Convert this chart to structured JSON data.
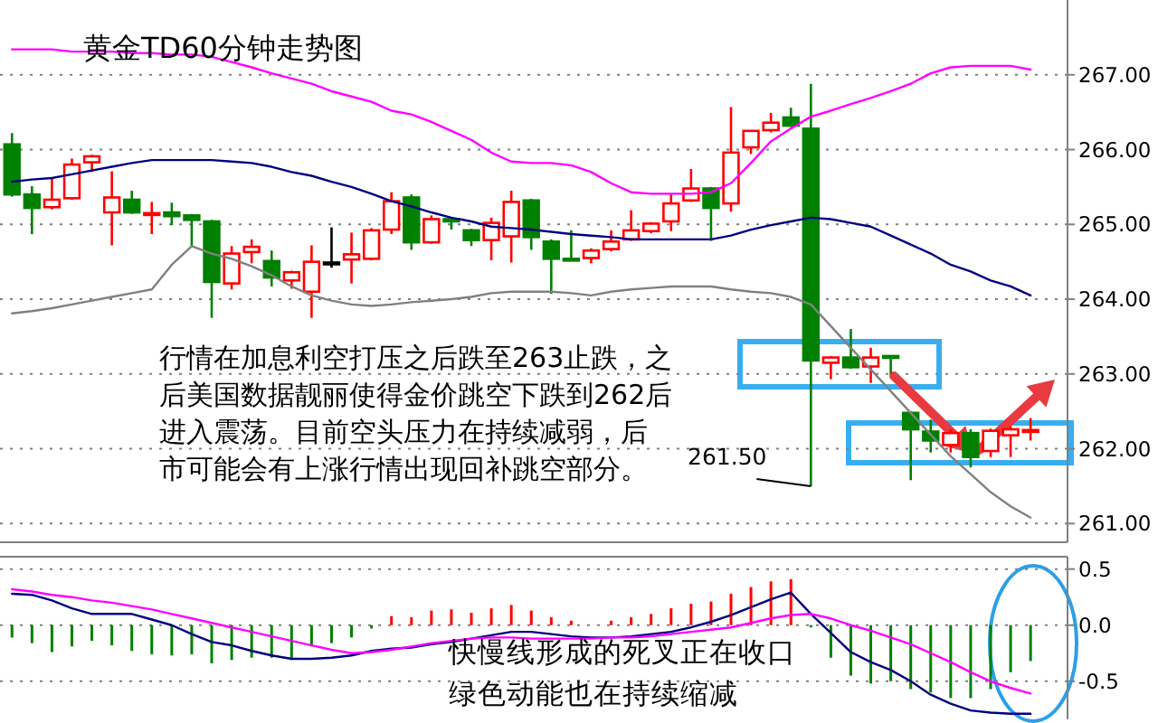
{
  "chart_data": [
    {
      "type": "candlestick",
      "title": "黄金TD60分钟走势图",
      "categories": [
        null,
        null,
        null,
        null,
        null,
        null,
        null,
        null,
        null,
        null,
        null,
        null,
        null,
        null,
        null,
        null,
        null,
        null,
        null,
        null,
        null,
        null,
        null,
        null,
        null,
        null,
        null,
        null,
        null,
        null,
        null,
        null,
        null,
        null,
        null,
        null,
        null,
        null,
        null,
        null,
        null,
        null,
        null,
        null,
        null,
        null,
        null,
        null,
        null,
        null,
        null,
        null
      ],
      "ohlc": [
        [
          266.07,
          266.22,
          265.37,
          265.4
        ],
        [
          265.4,
          265.51,
          264.87,
          265.22
        ],
        [
          265.23,
          265.61,
          265.2,
          265.33
        ],
        [
          265.35,
          265.88,
          265.33,
          265.8
        ],
        [
          265.83,
          265.93,
          265.7,
          265.91
        ],
        [
          265.16,
          265.71,
          264.72,
          265.36
        ],
        [
          265.33,
          265.45,
          265.14,
          265.16
        ],
        [
          265.13,
          265.3,
          264.87,
          265.15
        ],
        [
          265.16,
          265.29,
          264.99,
          265.11
        ],
        [
          265.12,
          265.14,
          264.71,
          265.06
        ],
        [
          265.04,
          265.06,
          263.75,
          264.23
        ],
        [
          264.21,
          264.71,
          264.13,
          264.61
        ],
        [
          264.63,
          264.8,
          264.48,
          264.7
        ],
        [
          264.51,
          264.65,
          264.17,
          264.29
        ],
        [
          264.25,
          264.38,
          264.14,
          264.36
        ],
        [
          264.1,
          264.72,
          263.75,
          264.5
        ],
        [
          264.49,
          264.96,
          264.42,
          264.49
        ],
        [
          264.53,
          264.89,
          264.21,
          264.6
        ],
        [
          264.54,
          264.95,
          264.52,
          264.92
        ],
        [
          264.93,
          265.43,
          264.87,
          265.31
        ],
        [
          265.36,
          265.4,
          264.66,
          264.76
        ],
        [
          264.76,
          265.12,
          264.74,
          265.07
        ],
        [
          265.07,
          265.09,
          264.93,
          265.04
        ],
        [
          264.92,
          264.94,
          264.71,
          264.79
        ],
        [
          264.79,
          265.09,
          264.52,
          265.02
        ],
        [
          264.84,
          265.45,
          264.49,
          265.3
        ],
        [
          265.32,
          265.34,
          264.66,
          264.83
        ],
        [
          264.77,
          264.8,
          264.07,
          264.54
        ],
        [
          264.54,
          264.92,
          264.52,
          264.53
        ],
        [
          264.55,
          264.68,
          264.48,
          264.65
        ],
        [
          264.67,
          264.92,
          264.64,
          264.77
        ],
        [
          264.8,
          265.19,
          264.78,
          264.92
        ],
        [
          264.91,
          265.03,
          264.88,
          265.01
        ],
        [
          265.04,
          265.4,
          264.91,
          265.28
        ],
        [
          265.32,
          265.74,
          265.3,
          265.48
        ],
        [
          265.48,
          265.5,
          264.78,
          265.22
        ],
        [
          265.28,
          266.57,
          265.17,
          265.96
        ],
        [
          266.03,
          266.26,
          265.94,
          266.25
        ],
        [
          266.26,
          266.49,
          266.23,
          266.36
        ],
        [
          266.43,
          266.56,
          266.3,
          266.32
        ],
        [
          266.28,
          266.88,
          261.5,
          263.18
        ],
        [
          263.15,
          263.24,
          262.93,
          263.22
        ],
        [
          263.22,
          263.6,
          263.07,
          263.09
        ],
        [
          263.1,
          263.35,
          262.88,
          263.22
        ],
        [
          263.24,
          263.25,
          263.0,
          263.23
        ],
        [
          262.48,
          262.5,
          261.58,
          262.26
        ],
        [
          262.23,
          262.39,
          261.95,
          262.11
        ],
        [
          262.05,
          262.26,
          261.95,
          262.21
        ],
        [
          262.21,
          262.26,
          261.75,
          261.89
        ],
        [
          261.97,
          262.27,
          261.89,
          262.24
        ],
        [
          262.18,
          262.3,
          261.89,
          262.26
        ],
        [
          262.24,
          262.41,
          262.11,
          262.25
        ]
      ],
      "colors": [
        "#008000",
        "#008000",
        "#ff0000",
        "#ff0000",
        "#ff0000",
        "#ff0000",
        "#008000",
        "#ff0000",
        "#008000",
        "#008000",
        "#008000",
        "#ff0000",
        "#ff0000",
        "#008000",
        "#ff0000",
        "#ff0000",
        "#000000",
        "#ff0000",
        "#ff0000",
        "#ff0000",
        "#008000",
        "#ff0000",
        "#008000",
        "#008000",
        "#ff0000",
        "#ff0000",
        "#008000",
        "#008000",
        "#008000",
        "#ff0000",
        "#ff0000",
        "#ff0000",
        "#ff0000",
        "#ff0000",
        "#ff0000",
        "#008000",
        "#ff0000",
        "#ff0000",
        "#ff0000",
        "#008000",
        "#008000",
        "#ff0000",
        "#008000",
        "#ff0000",
        "#008000",
        "#008000",
        "#008000",
        "#ff0000",
        "#008000",
        "#ff0000",
        "#ff0000",
        "#ff0000"
      ],
      "series": [
        {
          "type": "line",
          "color": "#ff00ff",
          "values": [
            267.34,
            267.34,
            267.34,
            267.31,
            267.31,
            267.31,
            267.29,
            267.29,
            267.27,
            267.27,
            267.24,
            267.17,
            267.1,
            267.02,
            266.95,
            266.88,
            266.78,
            266.71,
            266.64,
            266.52,
            266.47,
            266.37,
            266.25,
            266.13,
            265.96,
            265.84,
            265.82,
            265.82,
            265.79,
            265.7,
            265.55,
            265.43,
            265.41,
            265.41,
            265.41,
            265.43,
            265.55,
            265.82,
            266.11,
            266.28,
            266.44,
            266.52,
            266.61,
            266.69,
            266.78,
            266.88,
            267.02,
            267.1,
            267.12,
            267.12,
            267.12,
            267.07
          ]
        },
        {
          "type": "line",
          "color": "#000080",
          "values": [
            265.57,
            265.6,
            265.62,
            265.67,
            265.72,
            265.77,
            265.82,
            265.86,
            265.86,
            265.86,
            265.86,
            265.84,
            265.82,
            265.77,
            265.7,
            265.65,
            265.57,
            265.5,
            265.41,
            265.31,
            265.24,
            265.16,
            265.09,
            265.04,
            264.97,
            264.95,
            264.93,
            264.9,
            264.87,
            264.85,
            264.83,
            264.8,
            264.8,
            264.8,
            264.8,
            264.8,
            264.85,
            264.93,
            264.99,
            265.04,
            265.09,
            265.07,
            265.02,
            264.97,
            264.85,
            264.73,
            264.61,
            264.46,
            264.37,
            264.25,
            264.17,
            264.05
          ]
        },
        {
          "type": "line",
          "color": "#808080",
          "values": [
            263.81,
            263.84,
            263.88,
            263.93,
            263.98,
            264.03,
            264.08,
            264.13,
            264.46,
            264.71,
            264.61,
            264.54,
            264.44,
            264.32,
            264.17,
            264.05,
            263.98,
            263.93,
            263.91,
            263.93,
            263.96,
            263.98,
            264.0,
            264.03,
            264.08,
            264.1,
            264.1,
            264.1,
            264.08,
            264.05,
            264.1,
            264.13,
            264.15,
            264.17,
            264.17,
            264.17,
            264.13,
            264.1,
            264.08,
            264.03,
            263.93,
            263.64,
            263.35,
            263.06,
            262.77,
            262.48,
            262.19,
            261.9,
            261.66,
            261.42,
            261.23,
            261.08
          ]
        }
      ],
      "ylim": [
        260.75,
        268
      ],
      "yticks": [
        {
          "value": 261,
          "label": "261.00"
        },
        {
          "value": 262,
          "label": "262.00"
        },
        {
          "value": 263,
          "label": "263.00"
        },
        {
          "value": 264,
          "label": "264.00"
        },
        {
          "value": 265,
          "label": "265.00"
        },
        {
          "value": 266,
          "label": "266.00"
        },
        {
          "value": 267,
          "label": "267.00"
        }
      ],
      "grid": "y",
      "tick_labels": "y",
      "annotations": [
        "行情在加息利空打压之后跌至263止跌，之后美国数据靓丽使得金价跳空下跌到262后进入震荡。目前空头压力在持续减弱，后市可能会有上涨行情出现回补跳空部分。",
        "261.50"
      ]
    },
    {
      "type": "bar",
      "categories": [
        null,
        null,
        null,
        null,
        null,
        null,
        null,
        null,
        null,
        null,
        null,
        null,
        null,
        null,
        null,
        null,
        null,
        null,
        null,
        null,
        null,
        null,
        null,
        null,
        null,
        null,
        null,
        null,
        null,
        null,
        null,
        null,
        null,
        null,
        null,
        null,
        null,
        null,
        null,
        null,
        null,
        null,
        null,
        null,
        null,
        null,
        null,
        null,
        null,
        null,
        null,
        null
      ],
      "series": [
        {
          "type": "bar",
          "values": [
            -0.11,
            -0.16,
            -0.24,
            -0.19,
            -0.14,
            -0.18,
            -0.23,
            -0.26,
            -0.27,
            -0.26,
            -0.34,
            -0.31,
            -0.29,
            -0.29,
            -0.31,
            -0.19,
            -0.16,
            -0.11,
            -0.03,
            0.08,
            0.07,
            0.13,
            0.14,
            0.11,
            0.15,
            0.18,
            0.13,
            0.07,
            0.04,
            null,
            0.04,
            0.07,
            0.1,
            0.15,
            0.19,
            0.21,
            0.28,
            0.34,
            0.39,
            0.41,
            -0.02,
            -0.29,
            -0.45,
            -0.52,
            -0.5,
            -0.57,
            -0.6,
            -0.65,
            -0.65,
            -0.57,
            -0.42,
            -0.32
          ],
          "colors": [
            "#008000",
            "#008000",
            "#008000",
            "#008000",
            "#008000",
            "#008000",
            "#008000",
            "#008000",
            "#008000",
            "#008000",
            "#008000",
            "#008000",
            "#008000",
            "#008000",
            "#008000",
            "#008000",
            "#008000",
            "#008000",
            "#008000",
            "#ff0000",
            "#ff0000",
            "#ff0000",
            "#ff0000",
            "#ff0000",
            "#ff0000",
            "#ff0000",
            "#ff0000",
            "#ff0000",
            "#ff0000",
            null,
            "#ff0000",
            "#ff0000",
            "#ff0000",
            "#ff0000",
            "#ff0000",
            "#ff0000",
            "#ff0000",
            "#ff0000",
            "#ff0000",
            "#ff0000",
            "#008000",
            "#008000",
            "#008000",
            "#008000",
            "#008000",
            "#008000",
            "#008000",
            "#008000",
            "#008000",
            "#008000",
            "#008000",
            "#008000"
          ]
        },
        {
          "type": "line",
          "color": "#000080",
          "values": [
            0.28,
            0.27,
            0.22,
            0.15,
            0.1,
            0.1,
            0.1,
            0.05,
            0.0,
            -0.08,
            -0.15,
            -0.18,
            -0.23,
            -0.27,
            -0.3,
            -0.3,
            -0.29,
            -0.27,
            -0.23,
            -0.21,
            -0.2,
            -0.17,
            -0.15,
            -0.12,
            -0.09,
            -0.06,
            -0.06,
            -0.08,
            -0.1,
            -0.11,
            -0.11,
            -0.1,
            -0.08,
            -0.06,
            -0.02,
            0.03,
            0.09,
            0.16,
            0.23,
            0.29,
            0.1,
            -0.07,
            -0.24,
            -0.33,
            -0.4,
            -0.5,
            -0.62,
            -0.7,
            -0.76,
            -0.78,
            -0.79,
            -0.79
          ]
        },
        {
          "type": "line",
          "color": "#ff00ff",
          "values": [
            0.32,
            0.3,
            0.27,
            0.25,
            0.22,
            0.2,
            0.17,
            0.14,
            0.1,
            0.06,
            0.02,
            -0.02,
            -0.06,
            -0.1,
            -0.14,
            -0.18,
            -0.22,
            -0.25,
            -0.24,
            -0.22,
            -0.19,
            -0.16,
            -0.14,
            -0.12,
            -0.11,
            -0.11,
            -0.12,
            -0.12,
            -0.12,
            -0.12,
            -0.11,
            -0.11,
            -0.1,
            -0.08,
            -0.06,
            -0.04,
            -0.02,
            0.02,
            0.06,
            0.09,
            0.1,
            0.06,
            0.0,
            -0.05,
            -0.11,
            -0.17,
            -0.25,
            -0.33,
            -0.42,
            -0.5,
            -0.56,
            -0.61
          ]
        }
      ],
      "ylim": [
        -0.84,
        0.61
      ],
      "yticks": [
        {
          "value": 0.5,
          "label": "0.5"
        },
        {
          "value": 0,
          "label": "0.0"
        },
        {
          "value": -0.5,
          "label": "-0.5"
        }
      ],
      "grid": "y",
      "tick_labels": "y",
      "annotations": [
        "快慢线形成的死叉正在收口",
        "绿色动能也在持续缩减"
      ]
    }
  ]
}
